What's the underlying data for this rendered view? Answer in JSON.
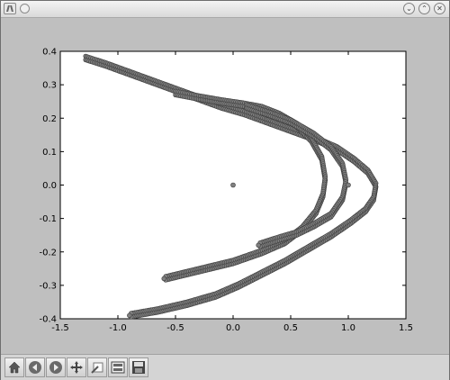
{
  "window": {
    "title": ""
  },
  "toolbar": {
    "buttons": [
      {
        "name": "home",
        "icon": "home-icon"
      },
      {
        "name": "back",
        "icon": "arrow-left-icon"
      },
      {
        "name": "forward",
        "icon": "arrow-right-icon"
      },
      {
        "name": "pan",
        "icon": "move-icon"
      },
      {
        "name": "zoom",
        "icon": "zoom-rect-icon"
      },
      {
        "name": "configure-subplots",
        "icon": "subplots-icon"
      },
      {
        "name": "save",
        "icon": "floppy-disk-icon"
      }
    ]
  },
  "chart_data": {
    "type": "scatter",
    "title": "",
    "xlabel": "",
    "ylabel": "",
    "xlim": [
      -1.5,
      1.5
    ],
    "ylim": [
      -0.4,
      0.4
    ],
    "xticks": [
      "-1.5",
      "-1.0",
      "-0.5",
      "0.0",
      "0.5",
      "1.0",
      "1.5"
    ],
    "yticks": [
      "-0.4",
      "-0.3",
      "-0.2",
      "-0.1",
      "0.0",
      "0.1",
      "0.2",
      "0.3",
      "0.4"
    ],
    "grid": false,
    "marker_color": "#808080",
    "series": [
      {
        "kind": "attractor-outer-band",
        "points": [
          [
            -1.28,
            0.38
          ],
          [
            -1.1,
            0.36
          ],
          [
            -0.9,
            0.335
          ],
          [
            -0.7,
            0.31
          ],
          [
            -0.5,
            0.285
          ],
          [
            -0.3,
            0.26
          ],
          [
            -0.1,
            0.235
          ],
          [
            0.1,
            0.215
          ],
          [
            0.3,
            0.19
          ],
          [
            0.5,
            0.165
          ],
          [
            0.7,
            0.14
          ],
          [
            0.9,
            0.11
          ],
          [
            1.05,
            0.075
          ],
          [
            1.17,
            0.04
          ],
          [
            1.24,
            0.0
          ],
          [
            1.22,
            -0.04
          ],
          [
            1.15,
            -0.075
          ],
          [
            1.02,
            -0.11
          ],
          [
            0.85,
            -0.15
          ],
          [
            0.65,
            -0.19
          ],
          [
            0.45,
            -0.23
          ],
          [
            0.25,
            -0.265
          ],
          [
            0.05,
            -0.3
          ],
          [
            -0.15,
            -0.33
          ],
          [
            -0.4,
            -0.355
          ],
          [
            -0.65,
            -0.375
          ],
          [
            -0.9,
            -0.39
          ]
        ]
      },
      {
        "kind": "attractor-inner-band",
        "points": [
          [
            -0.5,
            0.275
          ],
          [
            -0.3,
            0.262
          ],
          [
            -0.1,
            0.25
          ],
          [
            0.1,
            0.24
          ],
          [
            0.25,
            0.23
          ],
          [
            0.4,
            0.21
          ],
          [
            0.55,
            0.18
          ],
          [
            0.68,
            0.135
          ],
          [
            0.77,
            0.08
          ],
          [
            0.8,
            0.02
          ],
          [
            0.78,
            -0.03
          ],
          [
            0.72,
            -0.08
          ],
          [
            0.6,
            -0.13
          ],
          [
            0.45,
            -0.17
          ],
          [
            0.25,
            -0.2
          ],
          [
            0.0,
            -0.23
          ],
          [
            -0.3,
            -0.255
          ],
          [
            -0.6,
            -0.28
          ]
        ]
      },
      {
        "kind": "attractor-middle-band",
        "points": [
          [
            0.12,
            0.235
          ],
          [
            0.3,
            0.215
          ],
          [
            0.5,
            0.19
          ],
          [
            0.7,
            0.15
          ],
          [
            0.85,
            0.11
          ],
          [
            0.95,
            0.06
          ],
          [
            0.98,
            0.01
          ],
          [
            0.95,
            -0.04
          ],
          [
            0.85,
            -0.09
          ],
          [
            0.7,
            -0.12
          ],
          [
            0.55,
            -0.145
          ],
          [
            0.4,
            -0.16
          ],
          [
            0.22,
            -0.18
          ]
        ]
      },
      {
        "kind": "fixed-points",
        "points": [
          [
            0.0,
            0.0
          ],
          [
            1.0,
            0.0
          ]
        ]
      }
    ]
  }
}
